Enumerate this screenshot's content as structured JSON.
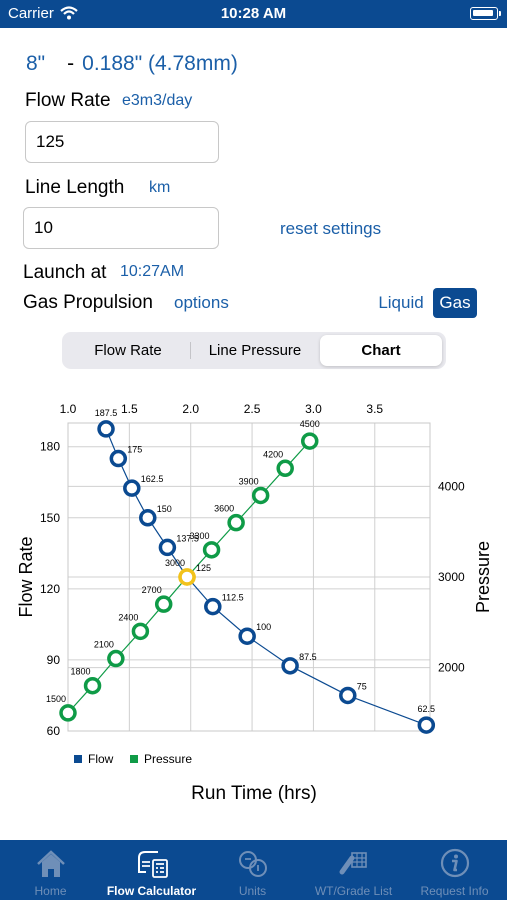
{
  "status_bar": {
    "carrier": "Carrier",
    "time": "10:28 AM"
  },
  "pipe": {
    "size": "8\"",
    "separator": "-",
    "wall": "0.188\" (4.78mm)"
  },
  "flow_rate": {
    "label": "Flow Rate",
    "unit": "e3m3/day",
    "value": "125"
  },
  "line_length": {
    "label": "Line Length",
    "unit": "km",
    "value": "10"
  },
  "reset_label": "reset settings",
  "launch": {
    "label": "Launch at",
    "time": "10:27AM"
  },
  "propulsion": {
    "label": "Gas Propulsion",
    "options_label": "options",
    "liquid_label": "Liquid",
    "gas_label": "Gas",
    "selected": "Gas"
  },
  "tabs": [
    {
      "label": "Flow Rate",
      "active": false
    },
    {
      "label": "Line Pressure",
      "active": false
    },
    {
      "label": "Chart",
      "active": true
    }
  ],
  "chart_data": {
    "type": "line",
    "xlabel": "Run Time (hrs)",
    "ylabel": "Flow Rate",
    "y2label": "Pressure",
    "xlim": [
      1.0,
      3.95
    ],
    "ylim": [
      60,
      190
    ],
    "y2lim": [
      1300,
      4700
    ],
    "x_ticks": [
      "1.0",
      "1.5",
      "2.0",
      "2.5",
      "3.0",
      "3.5"
    ],
    "y_ticks": [
      "60",
      "90",
      "120",
      "150",
      "180"
    ],
    "y2_ticks": [
      "2000",
      "3000",
      "4000"
    ],
    "grid": true,
    "legend": "bottom-left",
    "marker_fill": "#ffffff",
    "cross_marker_color": "#f2c21b",
    "series": [
      {
        "name": "Flow",
        "color": "#0b4a91",
        "axis": "left",
        "x": [
          1.31,
          1.41,
          1.52,
          1.65,
          1.81,
          1.97,
          2.18,
          2.46,
          2.81,
          3.28,
          3.92
        ],
        "y": [
          187.5,
          175,
          162.5,
          150,
          137.5,
          125,
          112.5,
          100,
          87.5,
          75,
          62.5
        ],
        "labels": [
          "187.5",
          "175",
          "162.5",
          "150",
          "137.5",
          "125",
          "112.5",
          "100",
          "87.5",
          "75",
          "62.5"
        ]
      },
      {
        "name": "Pressure",
        "color": "#0f9b47",
        "axis": "right",
        "x": [
          1.0,
          1.2,
          1.39,
          1.59,
          1.78,
          1.97,
          2.17,
          2.37,
          2.57,
          2.77,
          2.97
        ],
        "y": [
          1500,
          1800,
          2100,
          2400,
          2700,
          3000,
          3300,
          3600,
          3900,
          4200,
          4500
        ],
        "labels": [
          "1500",
          "1800",
          "2100",
          "2400",
          "2700",
          "3000",
          "3300",
          "3600",
          "3900",
          "4200",
          "4500"
        ]
      }
    ]
  },
  "tab_bar": [
    {
      "label": "Home",
      "icon": "house-icon",
      "active": false
    },
    {
      "label": "Flow Calculator",
      "icon": "flow-calculator-icon",
      "active": true
    },
    {
      "label": "Units",
      "icon": "units-icon",
      "active": false
    },
    {
      "label": "WT/Grade List",
      "icon": "pipe-grid-icon",
      "active": false
    },
    {
      "label": "Request Info",
      "icon": "info-icon",
      "active": false
    }
  ]
}
